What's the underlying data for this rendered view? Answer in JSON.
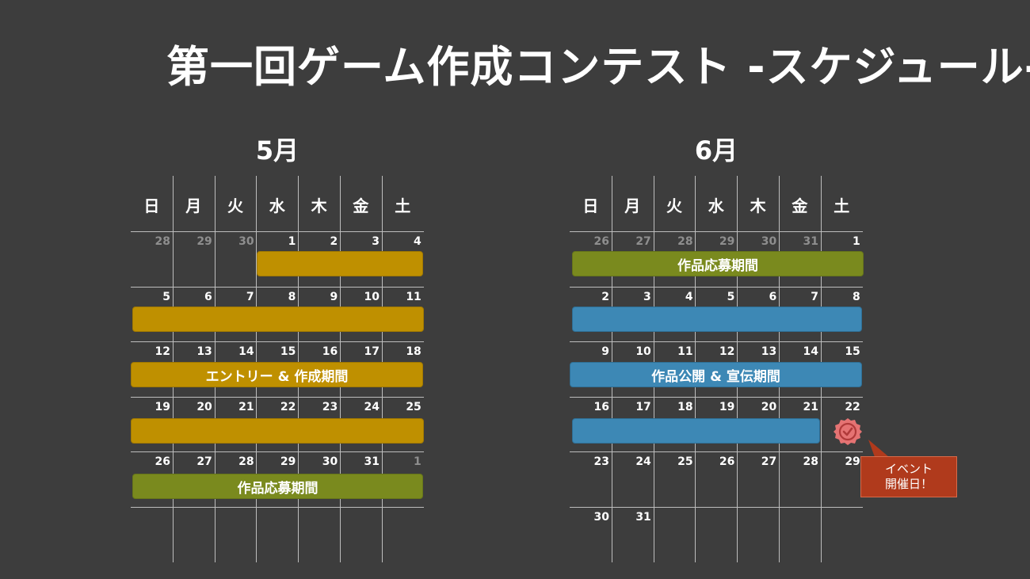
{
  "title": "第一回ゲーム作成コンテスト -スケジュール-",
  "weekdays": [
    "日",
    "月",
    "火",
    "水",
    "木",
    "金",
    "土"
  ],
  "may": {
    "label": "5月",
    "weeks": [
      [
        "28",
        "29",
        "30",
        "1",
        "2",
        "3",
        "4"
      ],
      [
        "5",
        "6",
        "7",
        "8",
        "9",
        "10",
        "11"
      ],
      [
        "12",
        "13",
        "14",
        "15",
        "16",
        "17",
        "18"
      ],
      [
        "19",
        "20",
        "21",
        "22",
        "23",
        "24",
        "25"
      ],
      [
        "26",
        "27",
        "28",
        "29",
        "30",
        "31",
        "1"
      ]
    ],
    "entry_bar_label": "エントリー & 作成期間",
    "submit_bar_label": "作品応募期間"
  },
  "june": {
    "label": "6月",
    "weeks": [
      [
        "26",
        "27",
        "28",
        "29",
        "30",
        "31",
        "1"
      ],
      [
        "2",
        "3",
        "4",
        "5",
        "6",
        "7",
        "8"
      ],
      [
        "9",
        "10",
        "11",
        "12",
        "13",
        "14",
        "15"
      ],
      [
        "16",
        "17",
        "18",
        "19",
        "20",
        "21",
        "22"
      ],
      [
        "23",
        "24",
        "25",
        "26",
        "27",
        "28",
        "29"
      ],
      [
        "30",
        "31",
        "",
        "",
        "",
        "",
        ""
      ]
    ],
    "submit_bar_label": "作品応募期間",
    "publish_bar_label": "作品公開 & 宣伝期間"
  },
  "callout": {
    "line1": "イベント",
    "line2": "開催日！"
  },
  "colors": {
    "background": "#3d3d3d",
    "entry_period": "#bf9000",
    "submit_period": "#7a8a1e",
    "publish_period": "#3d88b5",
    "event_day": "#b03a1c"
  }
}
